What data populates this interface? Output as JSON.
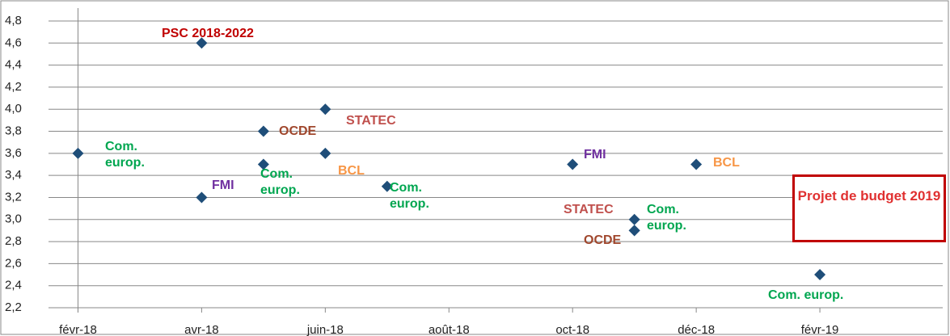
{
  "chart_data": {
    "type": "scatter",
    "points": [
      {
        "x": "2018-02",
        "y": 3.6,
        "label": "Com. europ.",
        "color": "#1f4e79",
        "label_color": "#00a650"
      },
      {
        "x": "2018-04",
        "y": 4.6,
        "label": "PSC 2018-2022",
        "color": "#1f4e79",
        "label_color": "#c00000"
      },
      {
        "x": "2018-04",
        "y": 3.2,
        "label": "FMI",
        "color": "#1f4e79",
        "label_color": "#7030a0"
      },
      {
        "x": "2018-05",
        "y": 3.8,
        "label": "OCDE",
        "color": "#1f4e79",
        "label_color": "#a0472d"
      },
      {
        "x": "2018-05",
        "y": 3.5,
        "label": "Com. europ.",
        "color": "#1f4e79",
        "label_color": "#00a650"
      },
      {
        "x": "2018-06",
        "y": 4.0,
        "label": "STATEC",
        "color": "#1f4e79",
        "label_color": "#c0504d"
      },
      {
        "x": "2018-06",
        "y": 3.6,
        "label": "BCL",
        "color": "#1f4e79",
        "label_color": "#f79646"
      },
      {
        "x": "2018-07",
        "y": 3.3,
        "label": "Com. europ.",
        "color": "#1f4e79",
        "label_color": "#00a650"
      },
      {
        "x": "2018-10",
        "y": 3.5,
        "label": "FMI",
        "color": "#1f4e79",
        "label_color": "#7030a0"
      },
      {
        "x": "2018-11",
        "y": 3.0,
        "label": "STATEC",
        "color": "#1f4e79",
        "label_color": "#c0504d"
      },
      {
        "x": "2018-11",
        "y": 2.9,
        "label": "Com. europ.",
        "color": "#1f4e79",
        "label_color": "#00a650"
      },
      {
        "x": "2018-11",
        "y": 2.9,
        "label": "OCDE",
        "color": "#1f4e79",
        "label_color": "#a0472d"
      },
      {
        "x": "2018-12",
        "y": 3.5,
        "label": "BCL",
        "color": "#1f4e79",
        "label_color": "#f79646"
      },
      {
        "x": "2019-02",
        "y": 2.5,
        "label": "Com. europ.",
        "color": "#1f4e79",
        "label_color": "#00a650"
      },
      {
        "x": "2019-03",
        "y": 3.0,
        "label": "Projet de budget 2019",
        "color": "#e04040",
        "label_color": "#e03030"
      }
    ],
    "xlim": [
      "2018-01",
      "2019-04"
    ],
    "xticks": [
      {
        "value": "2018-02",
        "label": "févr-18"
      },
      {
        "value": "2018-04",
        "label": "avr-18"
      },
      {
        "value": "2018-06",
        "label": "juin-18"
      },
      {
        "value": "2018-08",
        "label": "août-18"
      },
      {
        "value": "2018-10",
        "label": "oct-18"
      },
      {
        "value": "2018-12",
        "label": "déc-18"
      },
      {
        "value": "2019-02",
        "label": "févr-19"
      }
    ],
    "ylim": [
      2.2,
      4.8
    ],
    "yticks": [
      {
        "value": 2.2,
        "label": "2,2"
      },
      {
        "value": 2.4,
        "label": "2,4"
      },
      {
        "value": 2.6,
        "label": "2,6"
      },
      {
        "value": 2.8,
        "label": "2,8"
      },
      {
        "value": 3.0,
        "label": "3,0"
      },
      {
        "value": 3.2,
        "label": "3,2"
      },
      {
        "value": 3.4,
        "label": "3,4"
      },
      {
        "value": 3.6,
        "label": "3,6"
      },
      {
        "value": 3.8,
        "label": "3,8"
      },
      {
        "value": 4.0,
        "label": "4,0"
      },
      {
        "value": 4.2,
        "label": "4,2"
      },
      {
        "value": 4.4,
        "label": "4,4"
      },
      {
        "value": 4.6,
        "label": "4,6"
      },
      {
        "value": 4.8,
        "label": "4,8"
      }
    ],
    "grid": true
  }
}
